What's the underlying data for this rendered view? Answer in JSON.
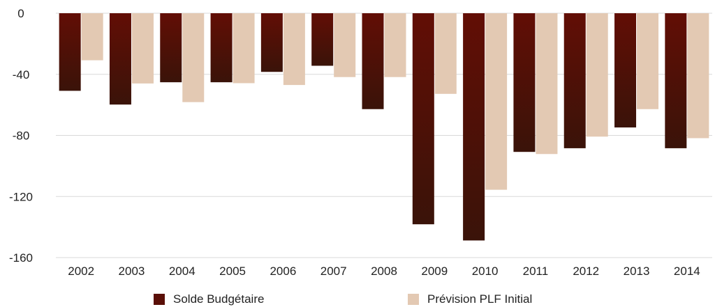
{
  "chart_data": {
    "type": "bar",
    "categories": [
      "2002",
      "2003",
      "2004",
      "2005",
      "2006",
      "2007",
      "2008",
      "2009",
      "2010",
      "2011",
      "2012",
      "2013",
      "2014"
    ],
    "series": [
      {
        "name": "Solde Budgétaire",
        "color": "#5a0f07",
        "values": [
          -50.8,
          -59.8,
          -45.2,
          -45.2,
          -38.4,
          -34.4,
          -62.8,
          -138.2,
          -148.8,
          -90.8,
          -88.4,
          -74.8,
          -88.4
        ]
      },
      {
        "name": "Prévision PLF Initial",
        "color": "#e3c9b3",
        "values": [
          -30.8,
          -46.0,
          -58.2,
          -45.8,
          -47.0,
          -41.8,
          -41.8,
          -52.8,
          -115.6,
          -92.2,
          -80.8,
          -62.8,
          -81.8
        ]
      }
    ],
    "y_ticks": [
      "0",
      "-40",
      "-80",
      "-120",
      "-160"
    ],
    "ylim": [
      -160,
      0
    ],
    "grid": true,
    "legend_position": "bottom"
  }
}
